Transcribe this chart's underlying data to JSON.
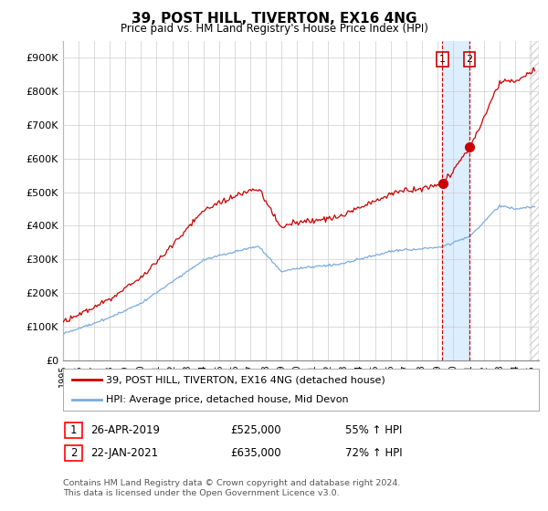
{
  "title": "39, POST HILL, TIVERTON, EX16 4NG",
  "subtitle": "Price paid vs. HM Land Registry's House Price Index (HPI)",
  "ylim": [
    0,
    950000
  ],
  "yticks": [
    0,
    100000,
    200000,
    300000,
    400000,
    500000,
    600000,
    700000,
    800000,
    900000
  ],
  "ytick_labels": [
    "£0",
    "£100K",
    "£200K",
    "£300K",
    "£400K",
    "£500K",
    "£600K",
    "£700K",
    "£800K",
    "£900K"
  ],
  "hpi_color": "#7aabdc",
  "price_color": "#cc0000",
  "sale1_date_label": "26-APR-2019",
  "sale1_price": 525000,
  "sale1_pct": "55% ↑ HPI",
  "sale1_year": 2019.32,
  "sale2_date_label": "22-JAN-2021",
  "sale2_price": 635000,
  "sale2_pct": "72% ↑ HPI",
  "sale2_year": 2021.06,
  "legend_line1": "39, POST HILL, TIVERTON, EX16 4NG (detached house)",
  "legend_line2": "HPI: Average price, detached house, Mid Devon",
  "footer": "Contains HM Land Registry data © Crown copyright and database right 2024.\nThis data is licensed under the Open Government Licence v3.0.",
  "background_color": "#ffffff",
  "grid_color": "#cccccc",
  "shade_color": "#ddeeff",
  "hatch_color": "#cccccc",
  "vline_color": "#cc0000",
  "marker_color": "#cc0000"
}
